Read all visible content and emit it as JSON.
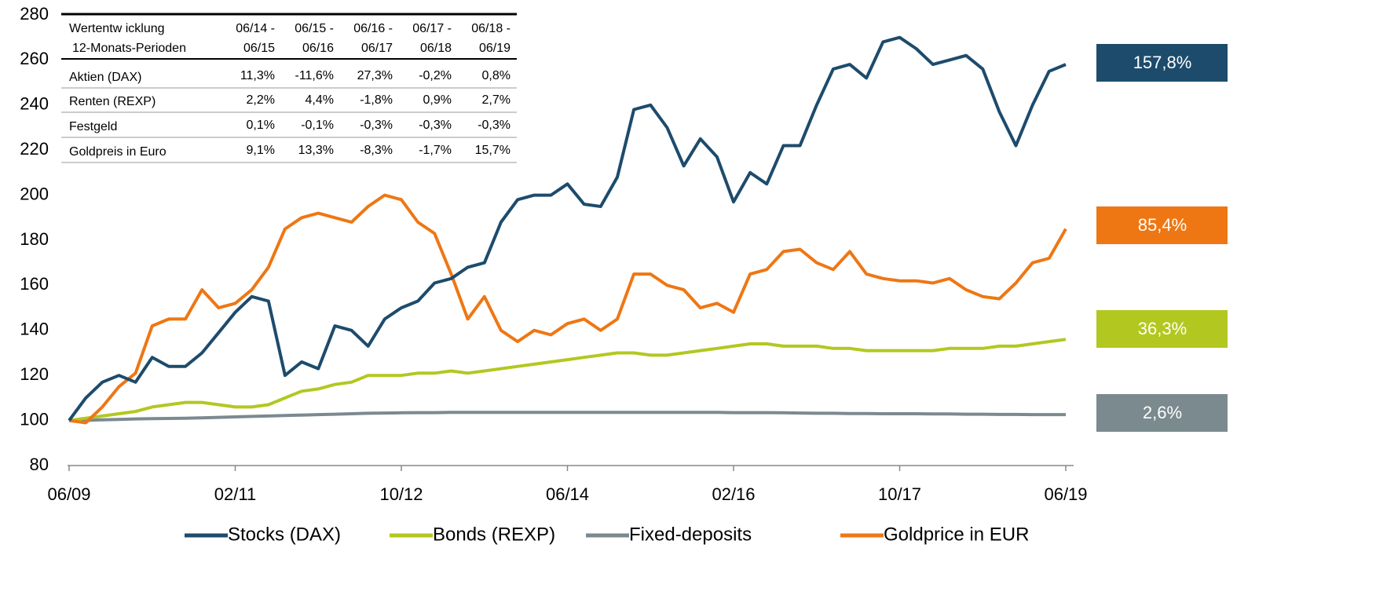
{
  "chart_data": {
    "type": "line",
    "x": [
      "06/09",
      "08/09",
      "10/09",
      "12/09",
      "02/10",
      "04/10",
      "06/10",
      "08/10",
      "10/10",
      "12/10",
      "02/11",
      "04/11",
      "06/11",
      "08/11",
      "10/11",
      "12/11",
      "02/12",
      "04/12",
      "06/12",
      "08/12",
      "10/12",
      "12/12",
      "02/13",
      "04/13",
      "06/13",
      "08/13",
      "10/13",
      "12/13",
      "02/14",
      "04/14",
      "06/14",
      "08/14",
      "10/14",
      "12/14",
      "02/15",
      "04/15",
      "06/15",
      "08/15",
      "10/15",
      "12/15",
      "02/16",
      "04/16",
      "06/16",
      "08/16",
      "10/16",
      "12/16",
      "02/17",
      "04/17",
      "06/17",
      "08/17",
      "10/17",
      "12/17",
      "02/18",
      "04/18",
      "06/18",
      "08/18",
      "10/18",
      "12/18",
      "02/19",
      "04/19",
      "06/19"
    ],
    "xtick_every": 10,
    "ylim": [
      80,
      280
    ],
    "yticks": [
      80,
      100,
      120,
      140,
      160,
      180,
      200,
      220,
      240,
      260,
      280
    ],
    "series": [
      {
        "name": "Stocks (DAX)",
        "color": "#1d4b6c",
        "end_label": "157,8%",
        "values": [
          100,
          110,
          117,
          120,
          117,
          128,
          124,
          124,
          130,
          139,
          148,
          155,
          153,
          120,
          126,
          123,
          142,
          140,
          133,
          145,
          150,
          153,
          161,
          163,
          168,
          170,
          188,
          198,
          200,
          200,
          205,
          196,
          195,
          208,
          238,
          240,
          230,
          213,
          225,
          217,
          197,
          210,
          205,
          222,
          222,
          240,
          256,
          258,
          252,
          268,
          270,
          265,
          258,
          260,
          262,
          256,
          237,
          222,
          240,
          255,
          258
        ]
      },
      {
        "name": "Bonds (REXP)",
        "color": "#b2c820",
        "end_label": "36,3%",
        "values": [
          100,
          101,
          102,
          103,
          104,
          106,
          107,
          108,
          108,
          107,
          106,
          106,
          107,
          110,
          113,
          114,
          116,
          117,
          120,
          120,
          120,
          121,
          121,
          122,
          121,
          122,
          123,
          124,
          125,
          126,
          127,
          128,
          129,
          130,
          130,
          129,
          129,
          130,
          131,
          132,
          133,
          134,
          134,
          133,
          133,
          133,
          132,
          132,
          131,
          131,
          131,
          131,
          131,
          132,
          132,
          132,
          133,
          133,
          134,
          135,
          136
        ]
      },
      {
        "name": "Fixed-deposits",
        "color": "#7b8a8f",
        "end_label": "2,6%",
        "values": [
          100,
          100,
          100.3,
          100.5,
          100.7,
          100.8,
          100.9,
          101,
          101.2,
          101.4,
          101.6,
          101.8,
          102,
          102.2,
          102.4,
          102.6,
          102.8,
          103,
          103.2,
          103.3,
          103.4,
          103.5,
          103.5,
          103.6,
          103.6,
          103.6,
          103.6,
          103.6,
          103.6,
          103.6,
          103.6,
          103.6,
          103.6,
          103.6,
          103.6,
          103.6,
          103.6,
          103.6,
          103.6,
          103.6,
          103.5,
          103.5,
          103.5,
          103.4,
          103.3,
          103.2,
          103.2,
          103.1,
          103.1,
          103,
          103,
          103,
          102.9,
          102.9,
          102.8,
          102.8,
          102.7,
          102.7,
          102.6,
          102.6,
          102.6
        ]
      },
      {
        "name": "Goldprice in EUR",
        "color": "#ee7714",
        "end_label": "85,4%",
        "values": [
          100,
          99,
          106,
          115,
          121,
          142,
          145,
          145,
          158,
          150,
          152,
          158,
          168,
          185,
          190,
          192,
          190,
          188,
          195,
          200,
          198,
          188,
          183,
          165,
          145,
          155,
          140,
          135,
          140,
          138,
          143,
          145,
          140,
          145,
          165,
          165,
          160,
          158,
          150,
          152,
          148,
          165,
          167,
          175,
          176,
          170,
          167,
          175,
          165,
          163,
          162,
          162,
          161,
          163,
          158,
          155,
          154,
          161,
          170,
          172,
          185
        ]
      }
    ],
    "table": {
      "header": [
        [
          "Wertentw icklung",
          "12-Monats-Perioden"
        ],
        [
          "06/14 -",
          "06/15"
        ],
        [
          "06/15 -",
          "06/16"
        ],
        [
          "06/16 -",
          "06/17"
        ],
        [
          "06/17 -",
          "06/18"
        ],
        [
          "06/18 -",
          "06/19"
        ]
      ],
      "rows": [
        [
          "Aktien (DAX)",
          "11,3%",
          "-11,6%",
          "27,3%",
          "-0,2%",
          "0,8%"
        ],
        [
          "Renten (REXP)",
          "2,2%",
          "4,4%",
          "-1,8%",
          "0,9%",
          "2,7%"
        ],
        [
          "Festgeld",
          "0,1%",
          "-0,1%",
          "-0,3%",
          "-0,3%",
          "-0,3%"
        ],
        [
          "Goldpreis in Euro",
          "9,1%",
          "13,3%",
          "-8,3%",
          "-1,7%",
          "15,7%"
        ]
      ]
    }
  }
}
